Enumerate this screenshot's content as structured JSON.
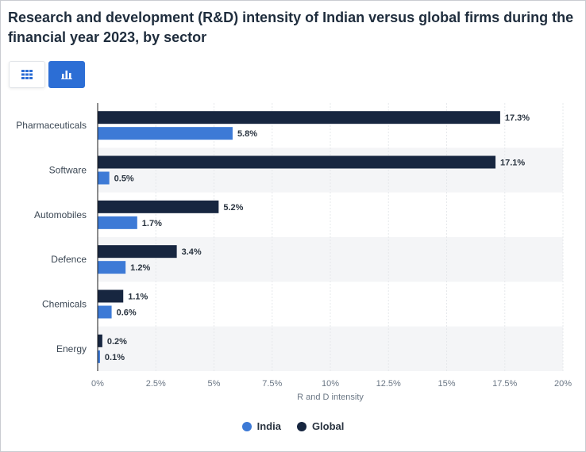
{
  "title": "Research and development (R&D) intensity of Indian versus global firms during the financial year 2023, by sector",
  "toolbar": {
    "table_icon": "table-grid-icon",
    "chart_icon": "bar-chart-icon"
  },
  "colors": {
    "india": "#3d7ad6",
    "global": "#172640",
    "band": "#f4f5f7",
    "grid": "#e6e8eb",
    "axis": "#1b1b1b"
  },
  "chart_data": {
    "type": "bar",
    "orientation": "horizontal",
    "categories": [
      "Pharmaceuticals",
      "Software",
      "Automobiles",
      "Defence",
      "Chemicals",
      "Energy"
    ],
    "series": [
      {
        "name": "Global",
        "values": [
          17.3,
          17.1,
          5.2,
          3.4,
          1.1,
          0.2
        ],
        "labels": [
          "17.3%",
          "17.1%",
          "5.2%",
          "3.4%",
          "1.1%",
          "0.2%"
        ]
      },
      {
        "name": "India",
        "values": [
          5.8,
          0.5,
          1.7,
          1.2,
          0.6,
          0.1
        ],
        "labels": [
          "5.8%",
          "0.5%",
          "1.7%",
          "1.2%",
          "0.6%",
          "0.1%"
        ]
      }
    ],
    "xlim": [
      0,
      20
    ],
    "xticks": [
      0,
      2.5,
      5,
      7.5,
      10,
      12.5,
      15,
      17.5,
      20
    ],
    "xtick_labels": [
      "0%",
      "2.5%",
      "5%",
      "7.5%",
      "10%",
      "12.5%",
      "15%",
      "17.5%",
      "20%"
    ],
    "xlabel": "R and D intensity",
    "grid": true,
    "legend_position": "bottom-center"
  },
  "legend": [
    {
      "label": "India",
      "color": "#3d7ad6"
    },
    {
      "label": "Global",
      "color": "#172640"
    }
  ]
}
